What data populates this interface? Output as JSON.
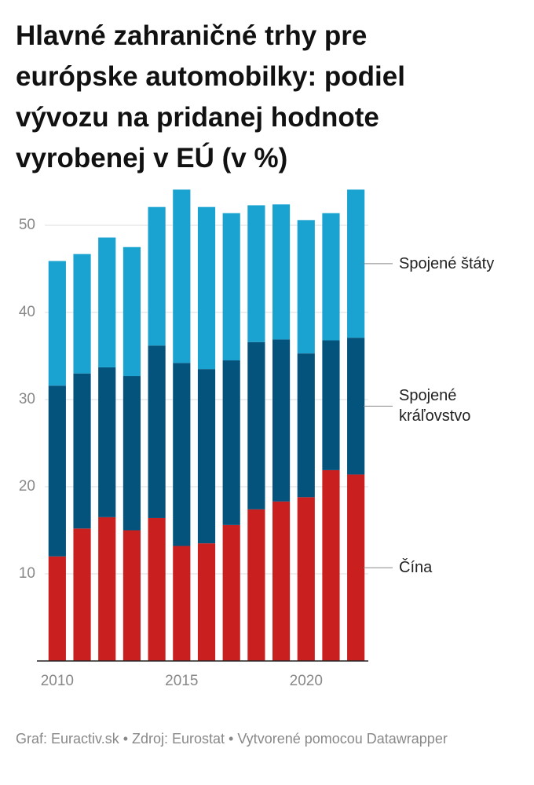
{
  "chart_data": {
    "type": "stacked-bar",
    "title": "Hlavné zahraničné trhy pre európske automobilky: podiel vývozu na pridanej hodnote vyrobenej v EÚ (v %)",
    "x": [
      2010,
      2011,
      2012,
      2013,
      2014,
      2015,
      2016,
      2017,
      2018,
      2019,
      2020,
      2021,
      2022
    ],
    "xlim": [
      2009.5,
      2022.5
    ],
    "xticks": [
      2010,
      2015,
      2020
    ],
    "ylim": [
      0,
      55
    ],
    "yticks": [
      10,
      20,
      30,
      40,
      50
    ],
    "grid": true,
    "series": [
      {
        "name": "Čína",
        "color": "#c9201f",
        "values": [
          12.0,
          15.2,
          16.5,
          15.0,
          16.4,
          13.2,
          13.5,
          15.6,
          17.4,
          18.3,
          18.8,
          21.9,
          21.4
        ]
      },
      {
        "name": "Spojené kráľovstvo",
        "color": "#03537d",
        "values": [
          19.6,
          17.8,
          17.2,
          17.7,
          19.8,
          21.0,
          20.0,
          18.9,
          19.2,
          18.6,
          16.5,
          14.9,
          15.7
        ]
      },
      {
        "name": "Spojené štáty",
        "color": "#1aa3d1",
        "values": [
          14.3,
          13.7,
          14.9,
          14.8,
          15.9,
          19.9,
          18.6,
          16.9,
          15.7,
          15.5,
          15.3,
          14.6,
          17.0
        ]
      }
    ],
    "source": "Graf: Euractiv.sk • Zdroj: Eurostat • Vytvorené pomocou Datawrapper"
  }
}
